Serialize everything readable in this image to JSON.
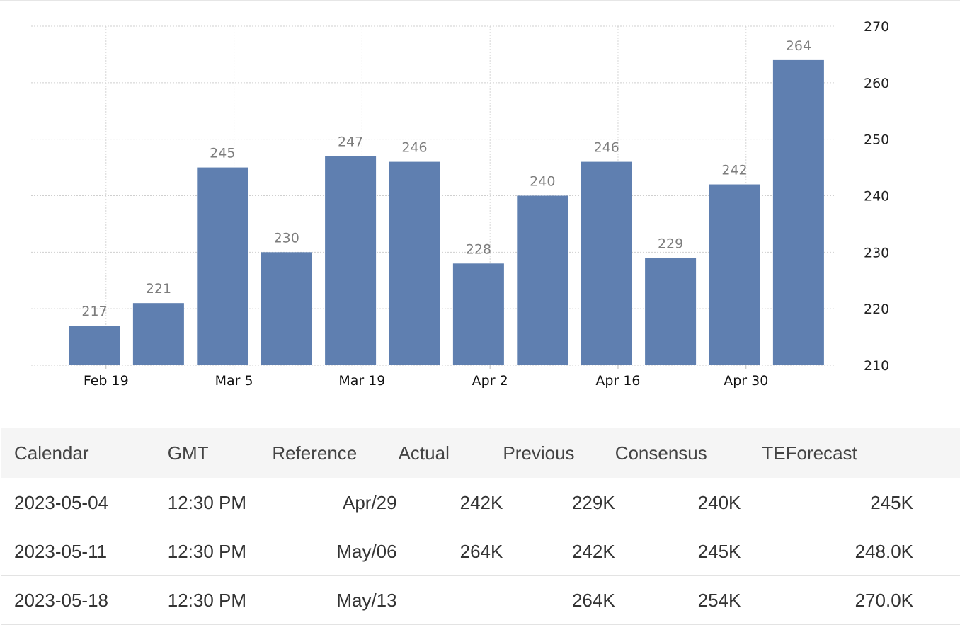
{
  "chart_data": {
    "type": "bar",
    "color": "#5f7fb0",
    "values": [
      217,
      221,
      245,
      230,
      247,
      246,
      228,
      240,
      246,
      229,
      242,
      264
    ],
    "data_labels": [
      "217",
      "221",
      "245",
      "230",
      "247",
      "246",
      "228",
      "240",
      "246",
      "229",
      "242",
      "264"
    ],
    "x_tick_labels": [
      "Feb 19",
      "Mar 5",
      "Mar 19",
      "Apr 2",
      "Apr 16",
      "Apr 30"
    ],
    "y_ticks": [
      210,
      220,
      230,
      240,
      250,
      260,
      270
    ],
    "ylim": [
      210,
      270
    ],
    "y_axis_side": "right",
    "grid": true
  },
  "table": {
    "headers": {
      "calendar": "Calendar",
      "gmt": "GMT",
      "reference": "Reference",
      "actual": "Actual",
      "previous": "Previous",
      "consensus": "Consensus",
      "teforecast": "TEForecast"
    },
    "rows": [
      {
        "calendar": "2023-05-04",
        "gmt": "12:30 PM",
        "reference": "Apr/29",
        "actual": "242K",
        "previous": "229K",
        "consensus": "240K",
        "teforecast": "245K"
      },
      {
        "calendar": "2023-05-11",
        "gmt": "12:30 PM",
        "reference": "May/06",
        "actual": "264K",
        "previous": "242K",
        "consensus": "245K",
        "teforecast": "248.0K"
      },
      {
        "calendar": "2023-05-18",
        "gmt": "12:30 PM",
        "reference": "May/13",
        "actual": "",
        "previous": "264K",
        "consensus": "254K",
        "teforecast": "270.0K"
      }
    ]
  }
}
